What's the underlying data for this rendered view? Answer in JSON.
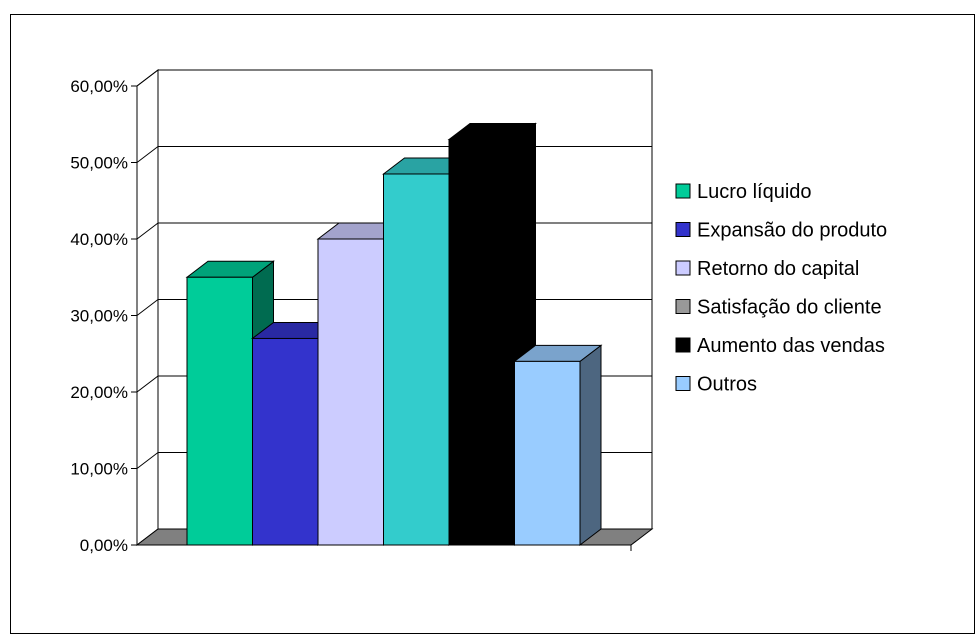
{
  "chart_data": {
    "type": "bar",
    "title": "",
    "xlabel": "",
    "ylabel": "",
    "ylim": [
      0,
      0.6
    ],
    "yticks": [
      "0,00%",
      "10,00%",
      "20,00%",
      "30,00%",
      "40,00%",
      "50,00%",
      "60,00%"
    ],
    "ytick_values": [
      0,
      0.1,
      0.2,
      0.3,
      0.4,
      0.5,
      0.6
    ],
    "grid": true,
    "three_d": true,
    "legend_position": "right",
    "series": [
      {
        "name": "Lucro líquido",
        "value": 0.35,
        "color": "#00CC99",
        "top_color": "#00A37A",
        "side_color": "#006B50"
      },
      {
        "name": "Expansão do produto",
        "value": 0.27,
        "color": "#3333CC",
        "top_color": "#2929A3",
        "side_color": "#1C1C70"
      },
      {
        "name": "Retorno do capital",
        "value": 0.4,
        "color": "#CCCCFF",
        "top_color": "#A3A3CC",
        "side_color": "#7A7A99"
      },
      {
        "name": "Satisfação do cliente",
        "value": 0.0,
        "color": "#999999",
        "top_color": "#7A7A7A",
        "side_color": "#5C5C5C"
      },
      {
        "name": "Aumento das vendas",
        "value": 0.53,
        "color": "#000000",
        "top_color": "#000000",
        "side_color": "#000000"
      },
      {
        "name": "Outros",
        "value": 0.24,
        "color": "#99CCFF",
        "top_color": "#7AA3CC",
        "side_color": "#4D6680"
      }
    ],
    "cyan_bar": {
      "value": 0.485,
      "color": "#33CCCC",
      "top_color": "#29A3A3",
      "side_color": "#1F7A7A"
    }
  }
}
